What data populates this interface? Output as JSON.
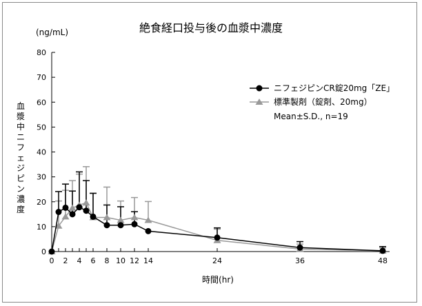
{
  "chart_data": {
    "type": "line",
    "title": "絶食経口投与後の血漿中濃度",
    "ylabel": "血漿中ニフェジピン濃度",
    "yunit": "(ng/mL)",
    "xlabel": "時間(hr)",
    "xlim": [
      0,
      48
    ],
    "ylim": [
      0,
      80
    ],
    "xticks": [
      0,
      2,
      4,
      6,
      8,
      10,
      12,
      14,
      24,
      36,
      48
    ],
    "xminor": [
      1,
      3,
      5
    ],
    "yticks": [
      0,
      10,
      20,
      30,
      40,
      50,
      60,
      70,
      80
    ],
    "grid": false,
    "legend_position": "right",
    "legend_note": "Mean±S.D., n=19",
    "series": [
      {
        "name": "ニフェジピンCR錠20mg「ZE」",
        "color": "#000000",
        "marker": "circle",
        "x": [
          0,
          1,
          2,
          3,
          4,
          5,
          6,
          8,
          10,
          12,
          14,
          24,
          36,
          48
        ],
        "y": [
          0,
          15.9,
          17.6,
          15.0,
          17.8,
          16.4,
          14.0,
          10.6,
          10.6,
          11.0,
          8.2,
          5.6,
          1.6,
          0.3
        ],
        "sd_upper": [
          0,
          24.1,
          27.1,
          24.3,
          32.0,
          28.5,
          23.4,
          18.7,
          18.0,
          16.0,
          8.2,
          9.5,
          4.0,
          2.0
        ]
      },
      {
        "name": "標準製剤（錠剤、20mg）",
        "color": "#999999",
        "marker": "triangle",
        "x": [
          0,
          1,
          2,
          3,
          4,
          5,
          6,
          8,
          10,
          12,
          14,
          24,
          36,
          48
        ],
        "y": [
          0,
          10.3,
          14.0,
          17.5,
          18.7,
          19.6,
          13.7,
          13.7,
          12.6,
          13.7,
          12.6,
          4.5,
          1.0,
          0.3
        ],
        "sd_upper": [
          0,
          20.3,
          24.6,
          28.5,
          31.1,
          34.1,
          23.4,
          25.9,
          20.3,
          21.7,
          20.1,
          9.0,
          3.0,
          1.5
        ]
      }
    ]
  }
}
